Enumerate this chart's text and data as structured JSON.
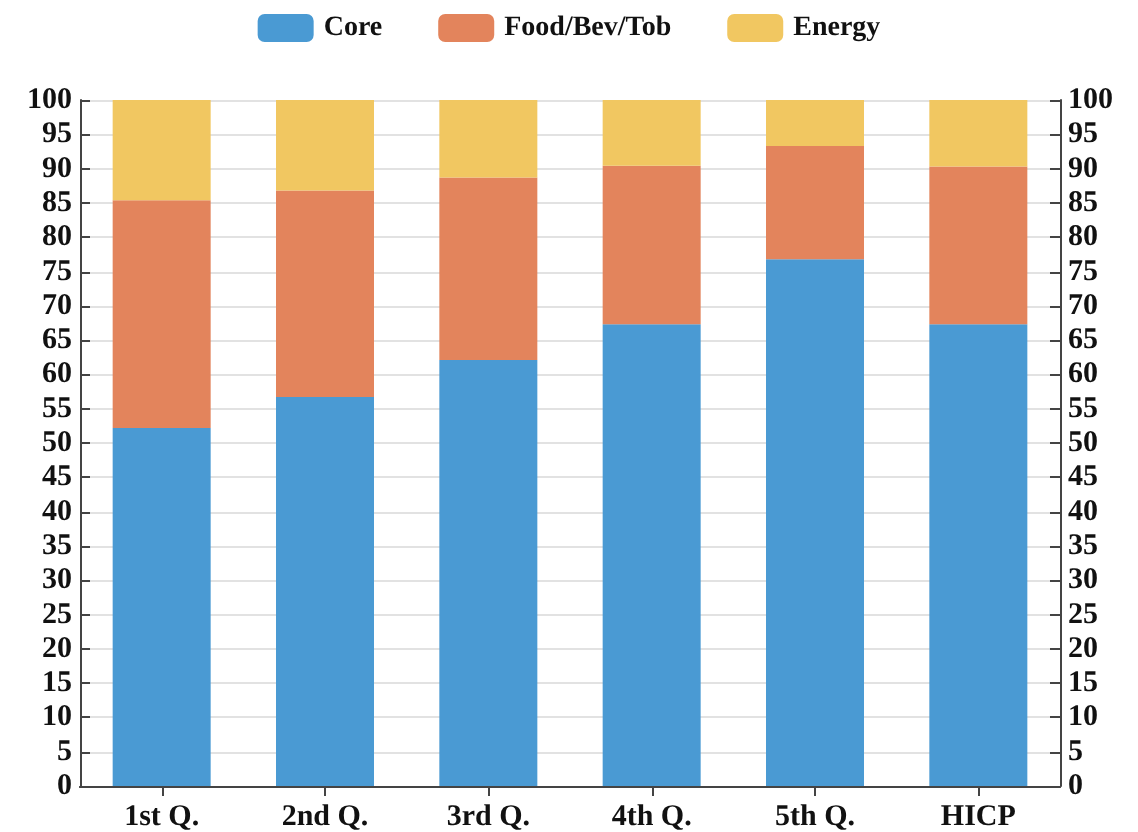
{
  "chart_data": {
    "type": "bar",
    "stacked": true,
    "categories": [
      "1st Q.",
      "2nd Q.",
      "3rd Q.",
      "4th Q.",
      "5th Q.",
      "HICP"
    ],
    "series": [
      {
        "name": "Core",
        "color": "#4a9ad3",
        "values": [
          52.2,
          56.7,
          62.1,
          67.3,
          76.8,
          67.3
        ]
      },
      {
        "name": "Food/Bev/Tob",
        "color": "#e3845c",
        "values": [
          33.2,
          30.1,
          26.6,
          23.1,
          16.5,
          23.0
        ]
      },
      {
        "name": "Energy",
        "color": "#f1c761",
        "values": [
          14.6,
          13.2,
          11.3,
          9.6,
          6.7,
          9.7
        ]
      }
    ],
    "ylim": [
      0,
      100
    ],
    "yticks": [
      0,
      5,
      10,
      15,
      20,
      25,
      30,
      35,
      40,
      45,
      50,
      55,
      60,
      65,
      70,
      75,
      80,
      85,
      90,
      95,
      100
    ],
    "y2lim": [
      0,
      100
    ],
    "y2ticks": [
      0,
      5,
      10,
      15,
      20,
      25,
      30,
      35,
      40,
      45,
      50,
      55,
      60,
      65,
      70,
      75,
      80,
      85,
      90,
      95,
      100
    ],
    "grid": "y",
    "legend": "top"
  }
}
